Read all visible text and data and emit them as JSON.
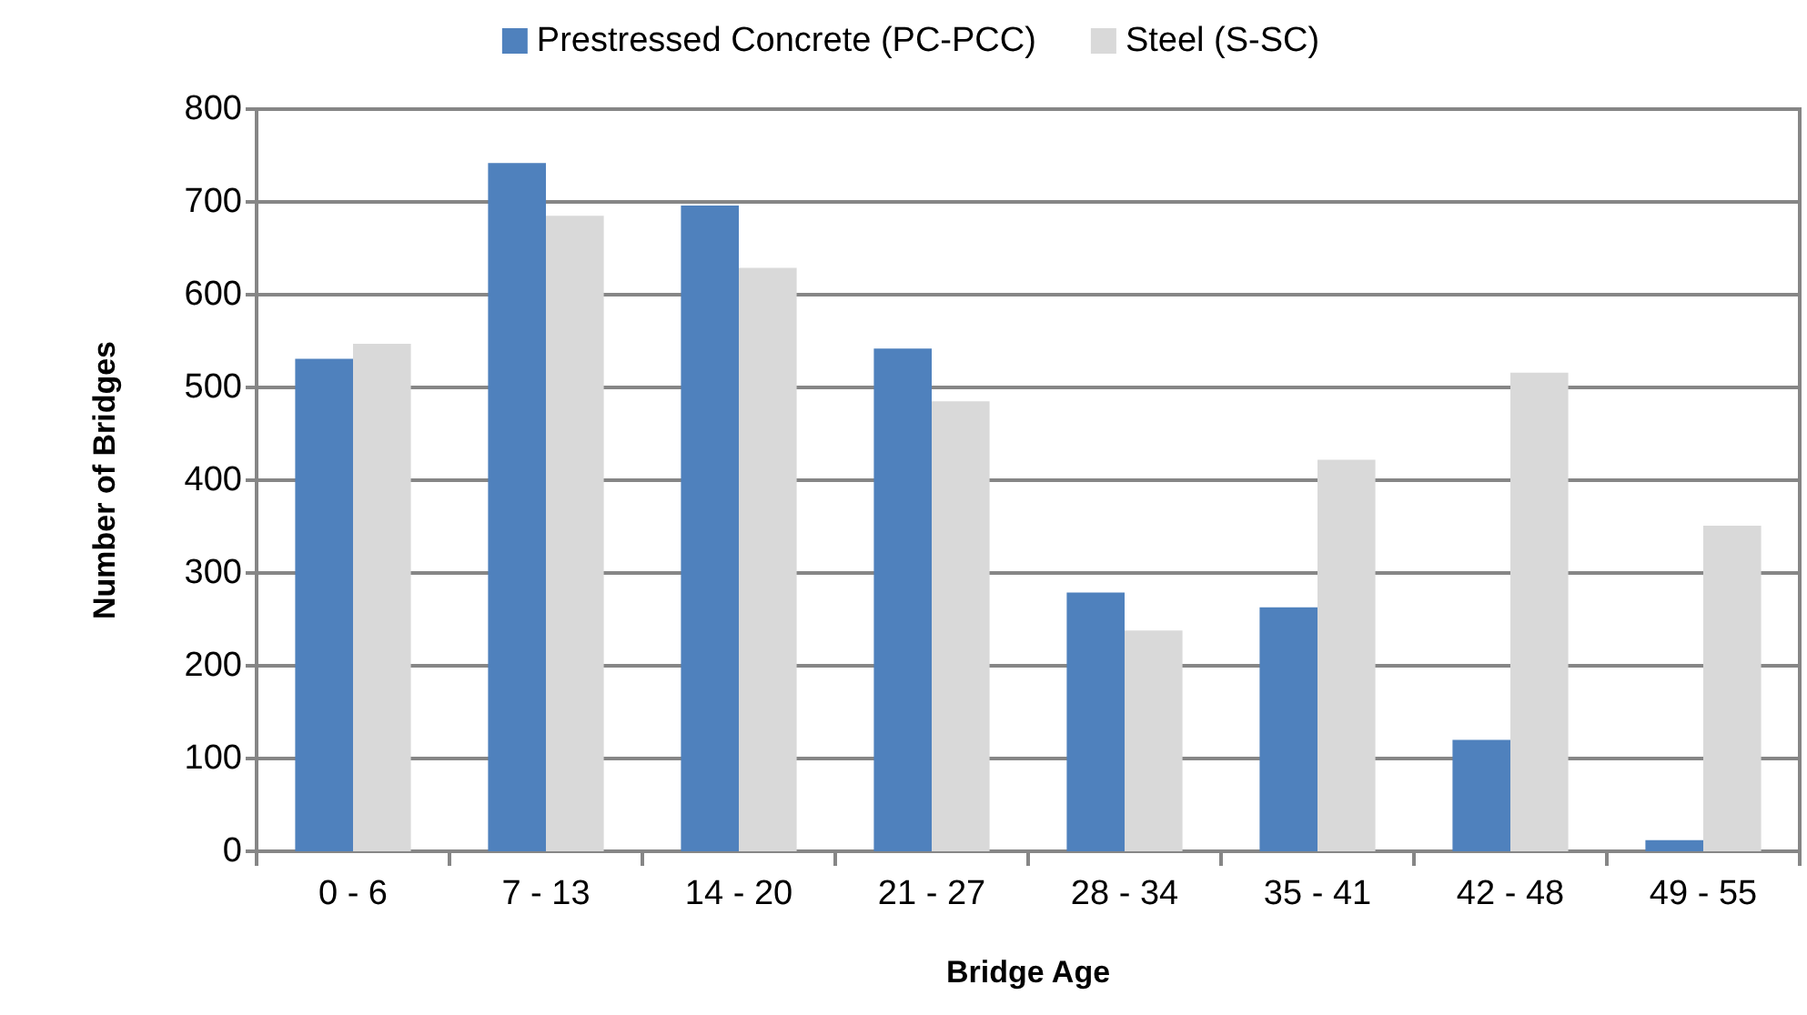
{
  "chart_data": {
    "type": "bar",
    "xlabel": "Bridge Age",
    "ylabel": "Number of Bridges",
    "categories": [
      "0 - 6",
      "7 - 13",
      "14 - 20",
      "21 - 27",
      "28 - 34",
      "35 - 41",
      "42 - 48",
      "49 - 55"
    ],
    "series": [
      {
        "name": "Prestressed Concrete (PC-PCC)",
        "color": "#4f81bd",
        "values": [
          531,
          742,
          696,
          542,
          279,
          263,
          120,
          12
        ]
      },
      {
        "name": "Steel (S-SC)",
        "color": "#d9d9d9",
        "values": [
          547,
          685,
          629,
          485,
          238,
          422,
          516,
          351
        ]
      }
    ],
    "ylim": [
      0,
      800
    ],
    "yticks": [
      0,
      100,
      200,
      300,
      400,
      500,
      600,
      700,
      800
    ],
    "grid": "y",
    "legend": "top"
  }
}
